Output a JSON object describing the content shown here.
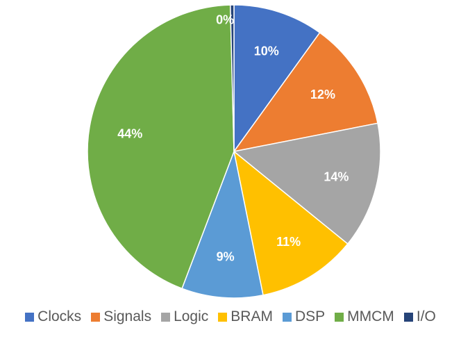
{
  "chart_data": {
    "type": "pie",
    "title": "",
    "data_labels_unit": "%",
    "legend_position": "bottom",
    "start_angle": "12 o'clock, clockwise",
    "slices": [
      {
        "name": "Clocks",
        "value": 10,
        "label": "10%",
        "color": "#4472C4"
      },
      {
        "name": "Signals",
        "value": 12,
        "label": "12%",
        "color": "#ED7D31"
      },
      {
        "name": "Logic",
        "value": 14,
        "label": "14%",
        "color": "#A5A5A5"
      },
      {
        "name": "BRAM",
        "value": 11,
        "label": "11%",
        "color": "#FFC000"
      },
      {
        "name": "DSP",
        "value": 9,
        "label": "9%",
        "color": "#5B9BD5"
      },
      {
        "name": "MMCM",
        "value": 44,
        "label": "44%",
        "color": "#70AD47"
      },
      {
        "name": "I/O",
        "value": 0.4,
        "label": "0%",
        "color": "#264478"
      }
    ]
  }
}
